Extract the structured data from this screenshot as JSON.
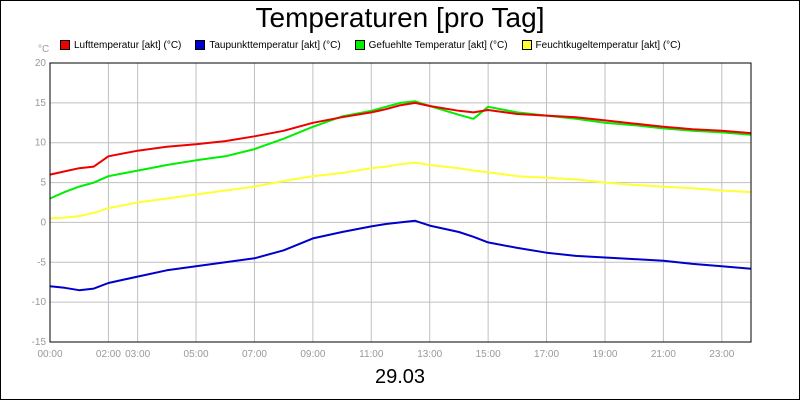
{
  "chart_data": {
    "type": "line",
    "title": "Temperaturen [pro Tag]",
    "date_label": "29.03",
    "yunit": "°C",
    "ylim": [
      -15,
      20
    ],
    "yticks": [
      20,
      15,
      10,
      5,
      0,
      -5,
      -10,
      -15
    ],
    "xlim": [
      0,
      24
    ],
    "xticks": [
      {
        "h": 0,
        "label": "00:00"
      },
      {
        "h": 2,
        "label": "02:00"
      },
      {
        "h": 3,
        "label": "03:00"
      },
      {
        "h": 5,
        "label": "05:00"
      },
      {
        "h": 7,
        "label": "07:00"
      },
      {
        "h": 9,
        "label": "09:00"
      },
      {
        "h": 11,
        "label": "11:00"
      },
      {
        "h": 13,
        "label": "13:00"
      },
      {
        "h": 15,
        "label": "15:00"
      },
      {
        "h": 17,
        "label": "17:00"
      },
      {
        "h": 19,
        "label": "19:00"
      },
      {
        "h": 21,
        "label": "21:00"
      },
      {
        "h": 23,
        "label": "23:00"
      }
    ],
    "grid": true,
    "legend_position": "top",
    "series": [
      {
        "name": "Lufttemperatur [akt] (°C)",
        "color": "#ee0000",
        "x": [
          0,
          0.5,
          1,
          1.5,
          2,
          3,
          4,
          5,
          6,
          7,
          8,
          9,
          10,
          11,
          11.5,
          12,
          12.5,
          13,
          14,
          14.5,
          15,
          16,
          17,
          18,
          19,
          20,
          21,
          22,
          23,
          24
        ],
        "y": [
          6.0,
          6.4,
          6.8,
          7.0,
          8.3,
          9.0,
          9.5,
          9.8,
          10.2,
          10.8,
          11.5,
          12.5,
          13.2,
          13.8,
          14.2,
          14.7,
          15.0,
          14.6,
          14.0,
          13.8,
          14.1,
          13.6,
          13.4,
          13.2,
          12.8,
          12.4,
          12.0,
          11.7,
          11.5,
          11.2
        ]
      },
      {
        "name": "Taupunkttemperatur [akt] (°C)",
        "color": "#0000cc",
        "x": [
          0,
          0.5,
          1,
          1.5,
          2,
          3,
          4,
          5,
          6,
          7,
          8,
          9,
          10,
          11,
          11.5,
          12,
          12.5,
          13,
          14,
          14.5,
          15,
          16,
          17,
          18,
          19,
          20,
          21,
          22,
          23,
          24
        ],
        "y": [
          -8.0,
          -8.2,
          -8.5,
          -8.3,
          -7.6,
          -6.8,
          -6.0,
          -5.5,
          -5.0,
          -4.5,
          -3.5,
          -2.0,
          -1.2,
          -0.5,
          -0.2,
          0.0,
          0.2,
          -0.4,
          -1.2,
          -1.8,
          -2.5,
          -3.2,
          -3.8,
          -4.2,
          -4.4,
          -4.6,
          -4.8,
          -5.2,
          -5.5,
          -5.8
        ]
      },
      {
        "name": "Gefuehlte Temperatur [akt] (°C)",
        "color": "#00ee00",
        "x": [
          0,
          0.5,
          1,
          1.5,
          2,
          3,
          4,
          5,
          6,
          7,
          8,
          9,
          10,
          11,
          11.5,
          12,
          12.5,
          13,
          14,
          14.5,
          15,
          16,
          17,
          18,
          19,
          20,
          21,
          22,
          23,
          24
        ],
        "y": [
          3.0,
          3.8,
          4.5,
          5.0,
          5.8,
          6.5,
          7.2,
          7.8,
          8.3,
          9.2,
          10.5,
          12.0,
          13.3,
          14.0,
          14.5,
          15.0,
          15.2,
          14.6,
          13.5,
          13.0,
          14.5,
          13.8,
          13.4,
          13.0,
          12.5,
          12.2,
          11.8,
          11.5,
          11.3,
          11.0
        ]
      },
      {
        "name": "Feuchtkugeltemperatur [akt] (°C)",
        "color": "#ffff33",
        "x": [
          0,
          0.5,
          1,
          1.5,
          2,
          3,
          4,
          5,
          6,
          7,
          8,
          9,
          10,
          11,
          11.5,
          12,
          12.5,
          13,
          14,
          14.5,
          15,
          16,
          17,
          18,
          19,
          20,
          21,
          22,
          23,
          24
        ],
        "y": [
          0.5,
          0.6,
          0.8,
          1.2,
          1.8,
          2.5,
          3.0,
          3.5,
          4.0,
          4.5,
          5.2,
          5.8,
          6.2,
          6.8,
          7.0,
          7.3,
          7.5,
          7.2,
          6.8,
          6.5,
          6.3,
          5.8,
          5.6,
          5.4,
          5.0,
          4.7,
          4.5,
          4.3,
          4.0,
          3.8
        ]
      }
    ]
  }
}
